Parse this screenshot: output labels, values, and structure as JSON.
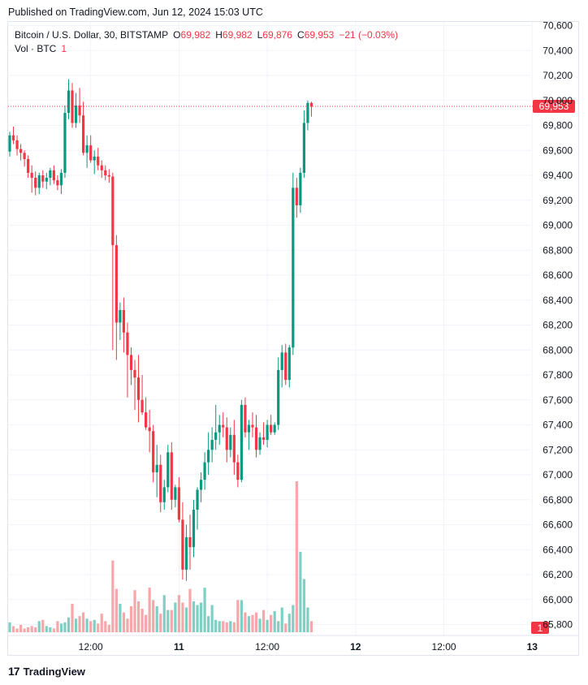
{
  "published": "Published on TradingView.com, Jun 12, 2024 15:03 UTC",
  "legend": {
    "symbol": "Bitcoin / U.S. Dollar, 30, BITSTAMP",
    "o_label": "O",
    "o_value": "69,982",
    "h_label": "H",
    "h_value": "69,982",
    "l_label": "L",
    "l_value": "69,876",
    "c_label": "C",
    "c_value": "69,953",
    "change": "−21 (−0.03%)",
    "vol_label": "Vol · BTC",
    "vol_value": "1"
  },
  "brand": {
    "logo": "17",
    "name": "TradingView"
  },
  "colors": {
    "up": "#089981",
    "down": "#f23645",
    "up_vol": "#7fcfc4",
    "down_vol": "#f7a6a9",
    "grid": "#f0f3fa"
  },
  "chart_data": {
    "type": "candlestick",
    "title": "Bitcoin / U.S. Dollar, 30, BITSTAMP",
    "ylim": [
      65700,
      70650
    ],
    "y_ticks": [
      "70,600",
      "70,400",
      "70,200",
      "70,000",
      "69,800",
      "69,600",
      "69,400",
      "69,200",
      "69,000",
      "68,800",
      "68,600",
      "68,400",
      "68,200",
      "68,000",
      "67,800",
      "67,600",
      "67,400",
      "67,200",
      "67,000",
      "66,800",
      "66,600",
      "66,400",
      "66,200",
      "66,000",
      "65,800"
    ],
    "x_ticks": [
      {
        "label": "12:00",
        "bar": 22
      },
      {
        "label": "11",
        "bar": 46
      },
      {
        "label": "12:00",
        "bar": 70
      },
      {
        "label": "12",
        "bar": 94
      },
      {
        "label": "12:00",
        "bar": 118
      },
      {
        "label": "13",
        "bar": 142
      }
    ],
    "last_price": {
      "value": 69953,
      "label": "69,953"
    },
    "volume_last_label": "1",
    "candles": [
      [
        69590,
        69750,
        69550,
        69720
      ],
      [
        69720,
        69790,
        69650,
        69680
      ],
      [
        69680,
        69720,
        69560,
        69610
      ],
      [
        69610,
        69650,
        69520,
        69580
      ],
      [
        69580,
        69600,
        69470,
        69530
      ],
      [
        69530,
        69560,
        69380,
        69420
      ],
      [
        69420,
        69480,
        69260,
        69380
      ],
      [
        69380,
        69430,
        69240,
        69300
      ],
      [
        69300,
        69420,
        69250,
        69400
      ],
      [
        69400,
        69440,
        69300,
        69350
      ],
      [
        69350,
        69420,
        69290,
        69380
      ],
      [
        69380,
        69460,
        69320,
        69440
      ],
      [
        69440,
        69480,
        69330,
        69360
      ],
      [
        69360,
        69400,
        69280,
        69320
      ],
      [
        69320,
        69450,
        69250,
        69420
      ],
      [
        69420,
        69960,
        69380,
        69900
      ],
      [
        69900,
        70170,
        69850,
        70080
      ],
      [
        70080,
        70140,
        69780,
        69820
      ],
      [
        69820,
        70060,
        69780,
        69960
      ],
      [
        69960,
        70100,
        69820,
        69880
      ],
      [
        69880,
        69990,
        69560,
        69580
      ],
      [
        69580,
        69720,
        69460,
        69640
      ],
      [
        69640,
        69720,
        69500,
        69520
      ],
      [
        69520,
        69600,
        69410,
        69550
      ],
      [
        69550,
        69620,
        69440,
        69480
      ],
      [
        69480,
        69520,
        69380,
        69440
      ],
      [
        69440,
        69480,
        69360,
        69400
      ],
      [
        69400,
        69450,
        69340,
        69390
      ],
      [
        69390,
        69420,
        68000,
        68840
      ],
      [
        68840,
        68920,
        67920,
        68220
      ],
      [
        68220,
        68380,
        68080,
        68320
      ],
      [
        68320,
        68420,
        67980,
        68140
      ],
      [
        68140,
        68220,
        67620,
        67960
      ],
      [
        67960,
        68020,
        67720,
        67840
      ],
      [
        67840,
        67920,
        67520,
        67780
      ],
      [
        67780,
        67960,
        67420,
        67600
      ],
      [
        67600,
        67800,
        67480,
        67500
      ],
      [
        67500,
        67620,
        67360,
        67380
      ],
      [
        67380,
        67520,
        67180,
        67350
      ],
      [
        67350,
        67400,
        66940,
        67020
      ],
      [
        67020,
        67240,
        66820,
        67080
      ],
      [
        67080,
        67160,
        66700,
        66780
      ],
      [
        66780,
        66960,
        66720,
        66900
      ],
      [
        66900,
        67240,
        66860,
        67180
      ],
      [
        67180,
        67260,
        66720,
        66800
      ],
      [
        66800,
        66920,
        66740,
        66900
      ],
      [
        66900,
        66980,
        66620,
        66640
      ],
      [
        66640,
        66780,
        66160,
        66240
      ],
      [
        66240,
        66600,
        66150,
        66500
      ],
      [
        66500,
        66680,
        66240,
        66420
      ],
      [
        66420,
        66800,
        66340,
        66720
      ],
      [
        66720,
        66900,
        66560,
        66880
      ],
      [
        66880,
        67020,
        66780,
        66960
      ],
      [
        66960,
        67180,
        66880,
        67100
      ],
      [
        67100,
        67340,
        67000,
        67200
      ],
      [
        67200,
        67380,
        67100,
        67280
      ],
      [
        67280,
        67560,
        67200,
        67340
      ],
      [
        67340,
        67480,
        67240,
        67400
      ],
      [
        67400,
        67500,
        67300,
        67380
      ],
      [
        67380,
        67460,
        67100,
        67200
      ],
      [
        67200,
        67380,
        67140,
        67320
      ],
      [
        67320,
        67440,
        67000,
        67100
      ],
      [
        67100,
        67160,
        66900,
        66960
      ],
      [
        66960,
        67600,
        66940,
        67560
      ],
      [
        67560,
        67620,
        67300,
        67340
      ],
      [
        67340,
        67440,
        67200,
        67400
      ],
      [
        67400,
        67500,
        67300,
        67380
      ],
      [
        67380,
        67480,
        67140,
        67200
      ],
      [
        67200,
        67340,
        67160,
        67300
      ],
      [
        67300,
        67420,
        67240,
        67280
      ],
      [
        67280,
        67440,
        67220,
        67400
      ],
      [
        67400,
        67480,
        67320,
        67340
      ],
      [
        67340,
        67420,
        67320,
        67400
      ],
      [
        67400,
        67940,
        67360,
        67840
      ],
      [
        67840,
        68040,
        67700,
        67980
      ],
      [
        67980,
        68050,
        67720,
        67760
      ],
      [
        67760,
        68040,
        67700,
        68020
      ],
      [
        68020,
        69420,
        67960,
        69300
      ],
      [
        69300,
        69380,
        69060,
        69160
      ],
      [
        69160,
        69460,
        69100,
        69420
      ],
      [
        69420,
        69920,
        69380,
        69820
      ],
      [
        69820,
        70000,
        69760,
        69980
      ],
      [
        69980,
        69990,
        69870,
        69950
      ]
    ],
    "volume_levels": [
      0.8,
      0.5,
      0.3,
      0.6,
      0.3,
      0.4,
      0.5,
      0.4,
      0.9,
      1.0,
      0.5,
      0.4,
      0.3,
      0.9,
      0.7,
      0.8,
      1.2,
      2.3,
      1.1,
      1.3,
      1.6,
      1.1,
      0.9,
      1.0,
      0.7,
      1.5,
      0.9,
      0.6,
      5.8,
      3.5,
      2.3,
      1.6,
      1.1,
      2.1,
      3.4,
      2.5,
      1.9,
      1.4,
      3.6,
      2.6,
      2.1,
      1.5,
      3.0,
      1.8,
      1.8,
      2.4,
      3.0,
      2.4,
      2.0,
      3.5,
      2.5,
      2.2,
      2.4,
      3.6,
      1.3,
      2.2,
      1.0,
      0.9,
      0.9,
      0.8,
      0.9,
      0.8,
      2.6,
      2.6,
      1.6,
      1.3,
      1.4,
      1.6,
      1.1,
      1.8,
      1.0,
      1.4,
      1.7,
      0.9,
      2.0,
      0.7,
      1.5,
      2.2,
      12.2,
      6.5,
      4.3,
      2.0,
      0.9
    ],
    "volume_max": 12.2
  }
}
